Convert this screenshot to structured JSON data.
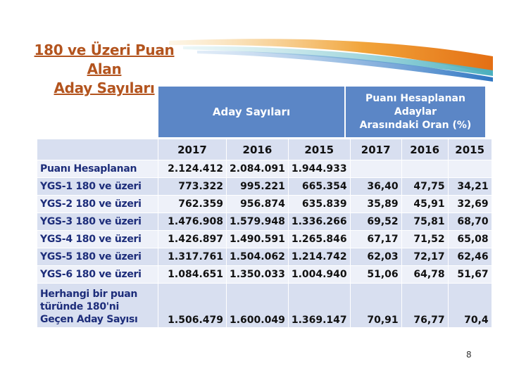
{
  "title": {
    "line1": "180 ve Üzeri Puan Alan",
    "line2": "Aday Sayıları"
  },
  "headers": {
    "group_a": "Aday Sayıları",
    "group_b_line1": "Puanı Hesaplanan Adaylar",
    "group_b_line2": "Arasındaki Oran (%)"
  },
  "years": [
    "2017",
    "2016",
    "2015",
    "2017",
    "2016",
    "2015"
  ],
  "rows": [
    {
      "label": "Puanı Hesaplanan",
      "values": [
        "2.124.412",
        "2.084.091",
        "1.944.933",
        "",
        "",
        ""
      ]
    },
    {
      "label": "YGS-1  180 ve üzeri",
      "values": [
        "773.322",
        "995.221",
        "665.354",
        "36,40",
        "47,75",
        "34,21"
      ]
    },
    {
      "label": "YGS-2  180 ve üzeri",
      "values": [
        "762.359",
        "956.874",
        "635.839",
        "35,89",
        "45,91",
        "32,69"
      ]
    },
    {
      "label": "YGS-3  180 ve üzeri",
      "values": [
        "1.476.908",
        "1.579.948",
        "1.336.266",
        "69,52",
        "75,81",
        "68,70"
      ]
    },
    {
      "label": "YGS-4  180 ve üzeri",
      "values": [
        "1.426.897",
        "1.490.591",
        "1.265.846",
        "67,17",
        "71,52",
        "65,08"
      ]
    },
    {
      "label": "YGS-5  180 ve üzeri",
      "values": [
        "1.317.761",
        "1.504.062",
        "1.214.742",
        "62,03",
        "72,17",
        "62,46"
      ]
    },
    {
      "label": "YGS-6  180 ve üzeri",
      "values": [
        "1.084.651",
        "1.350.033",
        "1.004.940",
        "51,06",
        "64,78",
        "51,67"
      ]
    },
    {
      "label": "Herhangi bir puan türünde 180'ni Geçen Aday Sayısı",
      "values": [
        "1.506.479",
        "1.600.049",
        "1.369.147",
        "70,91",
        "76,77",
        "70,4"
      ]
    }
  ],
  "page_number": "8",
  "colors": {
    "header_blue": "#5b86c6",
    "title_orange": "#b3541e",
    "cell_light": "#d8dff0",
    "cell_lighter": "#eef1f9"
  }
}
